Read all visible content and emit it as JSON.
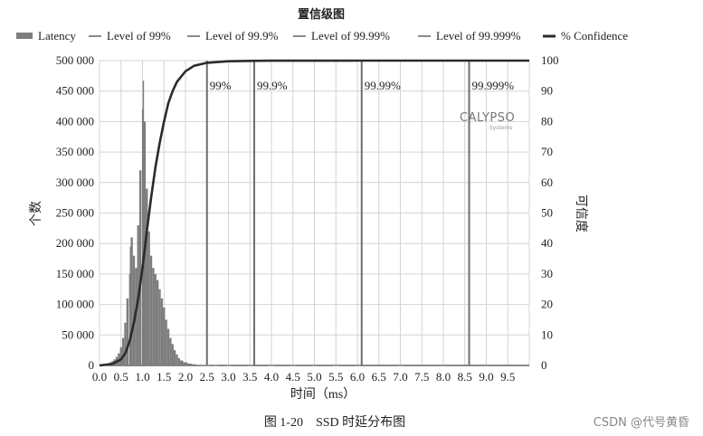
{
  "chart_data": {
    "type": "bar",
    "title": "置信级图",
    "xlabel": "时间（ms）",
    "ylabel_left": "个数",
    "ylabel_right": "可信度",
    "x_ticks": [
      "0.0",
      "0.5",
      "1.0",
      "1.5",
      "2.0",
      "2.5",
      "3.0",
      "3.5",
      "4.0",
      "4.5",
      "5.0",
      "5.5",
      "6.0",
      "6.5",
      "7.0",
      "7.5",
      "8.0",
      "8.5",
      "9.0",
      "9.5"
    ],
    "y_left_ticks": [
      "0",
      "50 000",
      "100 000",
      "150 000",
      "200 000",
      "250 000",
      "300 000",
      "350 000",
      "400 000",
      "450 000",
      "500 000"
    ],
    "y_right_ticks": [
      "0",
      "10",
      "20",
      "30",
      "40",
      "50",
      "60",
      "70",
      "80",
      "90",
      "100"
    ],
    "xlim": [
      0,
      10.0
    ],
    "ylim_left": [
      0,
      500000
    ],
    "ylim_right": [
      0,
      100
    ],
    "legend": {
      "placement": "top",
      "items": [
        {
          "name": "Latency",
          "kind": "bar"
        },
        {
          "name": "Level of 99%",
          "kind": "line"
        },
        {
          "name": "Level of 99.9%",
          "kind": "line"
        },
        {
          "name": "Level of 99.99%",
          "kind": "line"
        },
        {
          "name": "Level of 99.999%",
          "kind": "line"
        },
        {
          "name": "% Confidence",
          "kind": "thick-line"
        }
      ]
    },
    "latency_histogram": {
      "x": [
        0.1,
        0.15,
        0.2,
        0.25,
        0.3,
        0.35,
        0.4,
        0.45,
        0.5,
        0.55,
        0.6,
        0.65,
        0.7,
        0.72,
        0.75,
        0.8,
        0.85,
        0.9,
        0.95,
        1.0,
        1.02,
        1.05,
        1.1,
        1.15,
        1.2,
        1.25,
        1.3,
        1.35,
        1.4,
        1.45,
        1.5,
        1.55,
        1.6,
        1.65,
        1.7,
        1.75,
        1.8,
        1.85,
        1.9,
        2.0,
        2.1,
        2.2,
        2.3,
        2.4,
        2.5,
        2.7,
        3.0,
        3.5,
        4.0,
        4.5,
        5.0,
        5.5,
        6.0,
        7.0,
        8.0,
        9.0
      ],
      "y": [
        1000,
        2000,
        3000,
        5000,
        7000,
        10000,
        14000,
        20000,
        30000,
        45000,
        70000,
        110000,
        150000,
        195000,
        210000,
        180000,
        160000,
        230000,
        320000,
        420000,
        467000,
        400000,
        290000,
        220000,
        180000,
        160000,
        150000,
        140000,
        125000,
        110000,
        95000,
        75000,
        60000,
        45000,
        35000,
        25000,
        18000,
        12000,
        8000,
        5000,
        3000,
        2000,
        1000,
        800,
        600,
        400,
        300,
        200,
        150,
        120,
        100,
        80,
        60,
        40,
        30,
        20
      ]
    },
    "confidence_curve": {
      "x": [
        0.0,
        0.3,
        0.5,
        0.6,
        0.7,
        0.8,
        0.9,
        1.0,
        1.1,
        1.2,
        1.3,
        1.4,
        1.5,
        1.6,
        1.7,
        1.8,
        2.0,
        2.2,
        2.5,
        3.0,
        3.5,
        4.0,
        6.0,
        8.0,
        10.0
      ],
      "y": [
        0,
        0.5,
        2,
        4,
        8,
        14,
        22,
        32,
        44,
        55,
        65,
        73,
        80,
        86,
        90,
        93,
        96.5,
        98.3,
        99.3,
        99.8,
        99.9,
        99.97,
        100,
        100,
        100
      ]
    },
    "levels": [
      {
        "label": "99%",
        "x": 2.5
      },
      {
        "label": "99.9%",
        "x": 3.6
      },
      {
        "label": "99.99%",
        "x": 6.1
      },
      {
        "label": "99.999%",
        "x": 8.6
      }
    ],
    "watermark_logo": "CALYPSO",
    "watermark_sub": "Systems"
  },
  "caption": "图 1-20　SSD 时延分布图",
  "credit": "CSDN @代号黄昏",
  "colors": {
    "bars": "#7d7d7d",
    "level_line": "#6e6e6e",
    "confidence": "#2b2b2b",
    "grid": "#d4d4d4",
    "axis": "#444444"
  }
}
